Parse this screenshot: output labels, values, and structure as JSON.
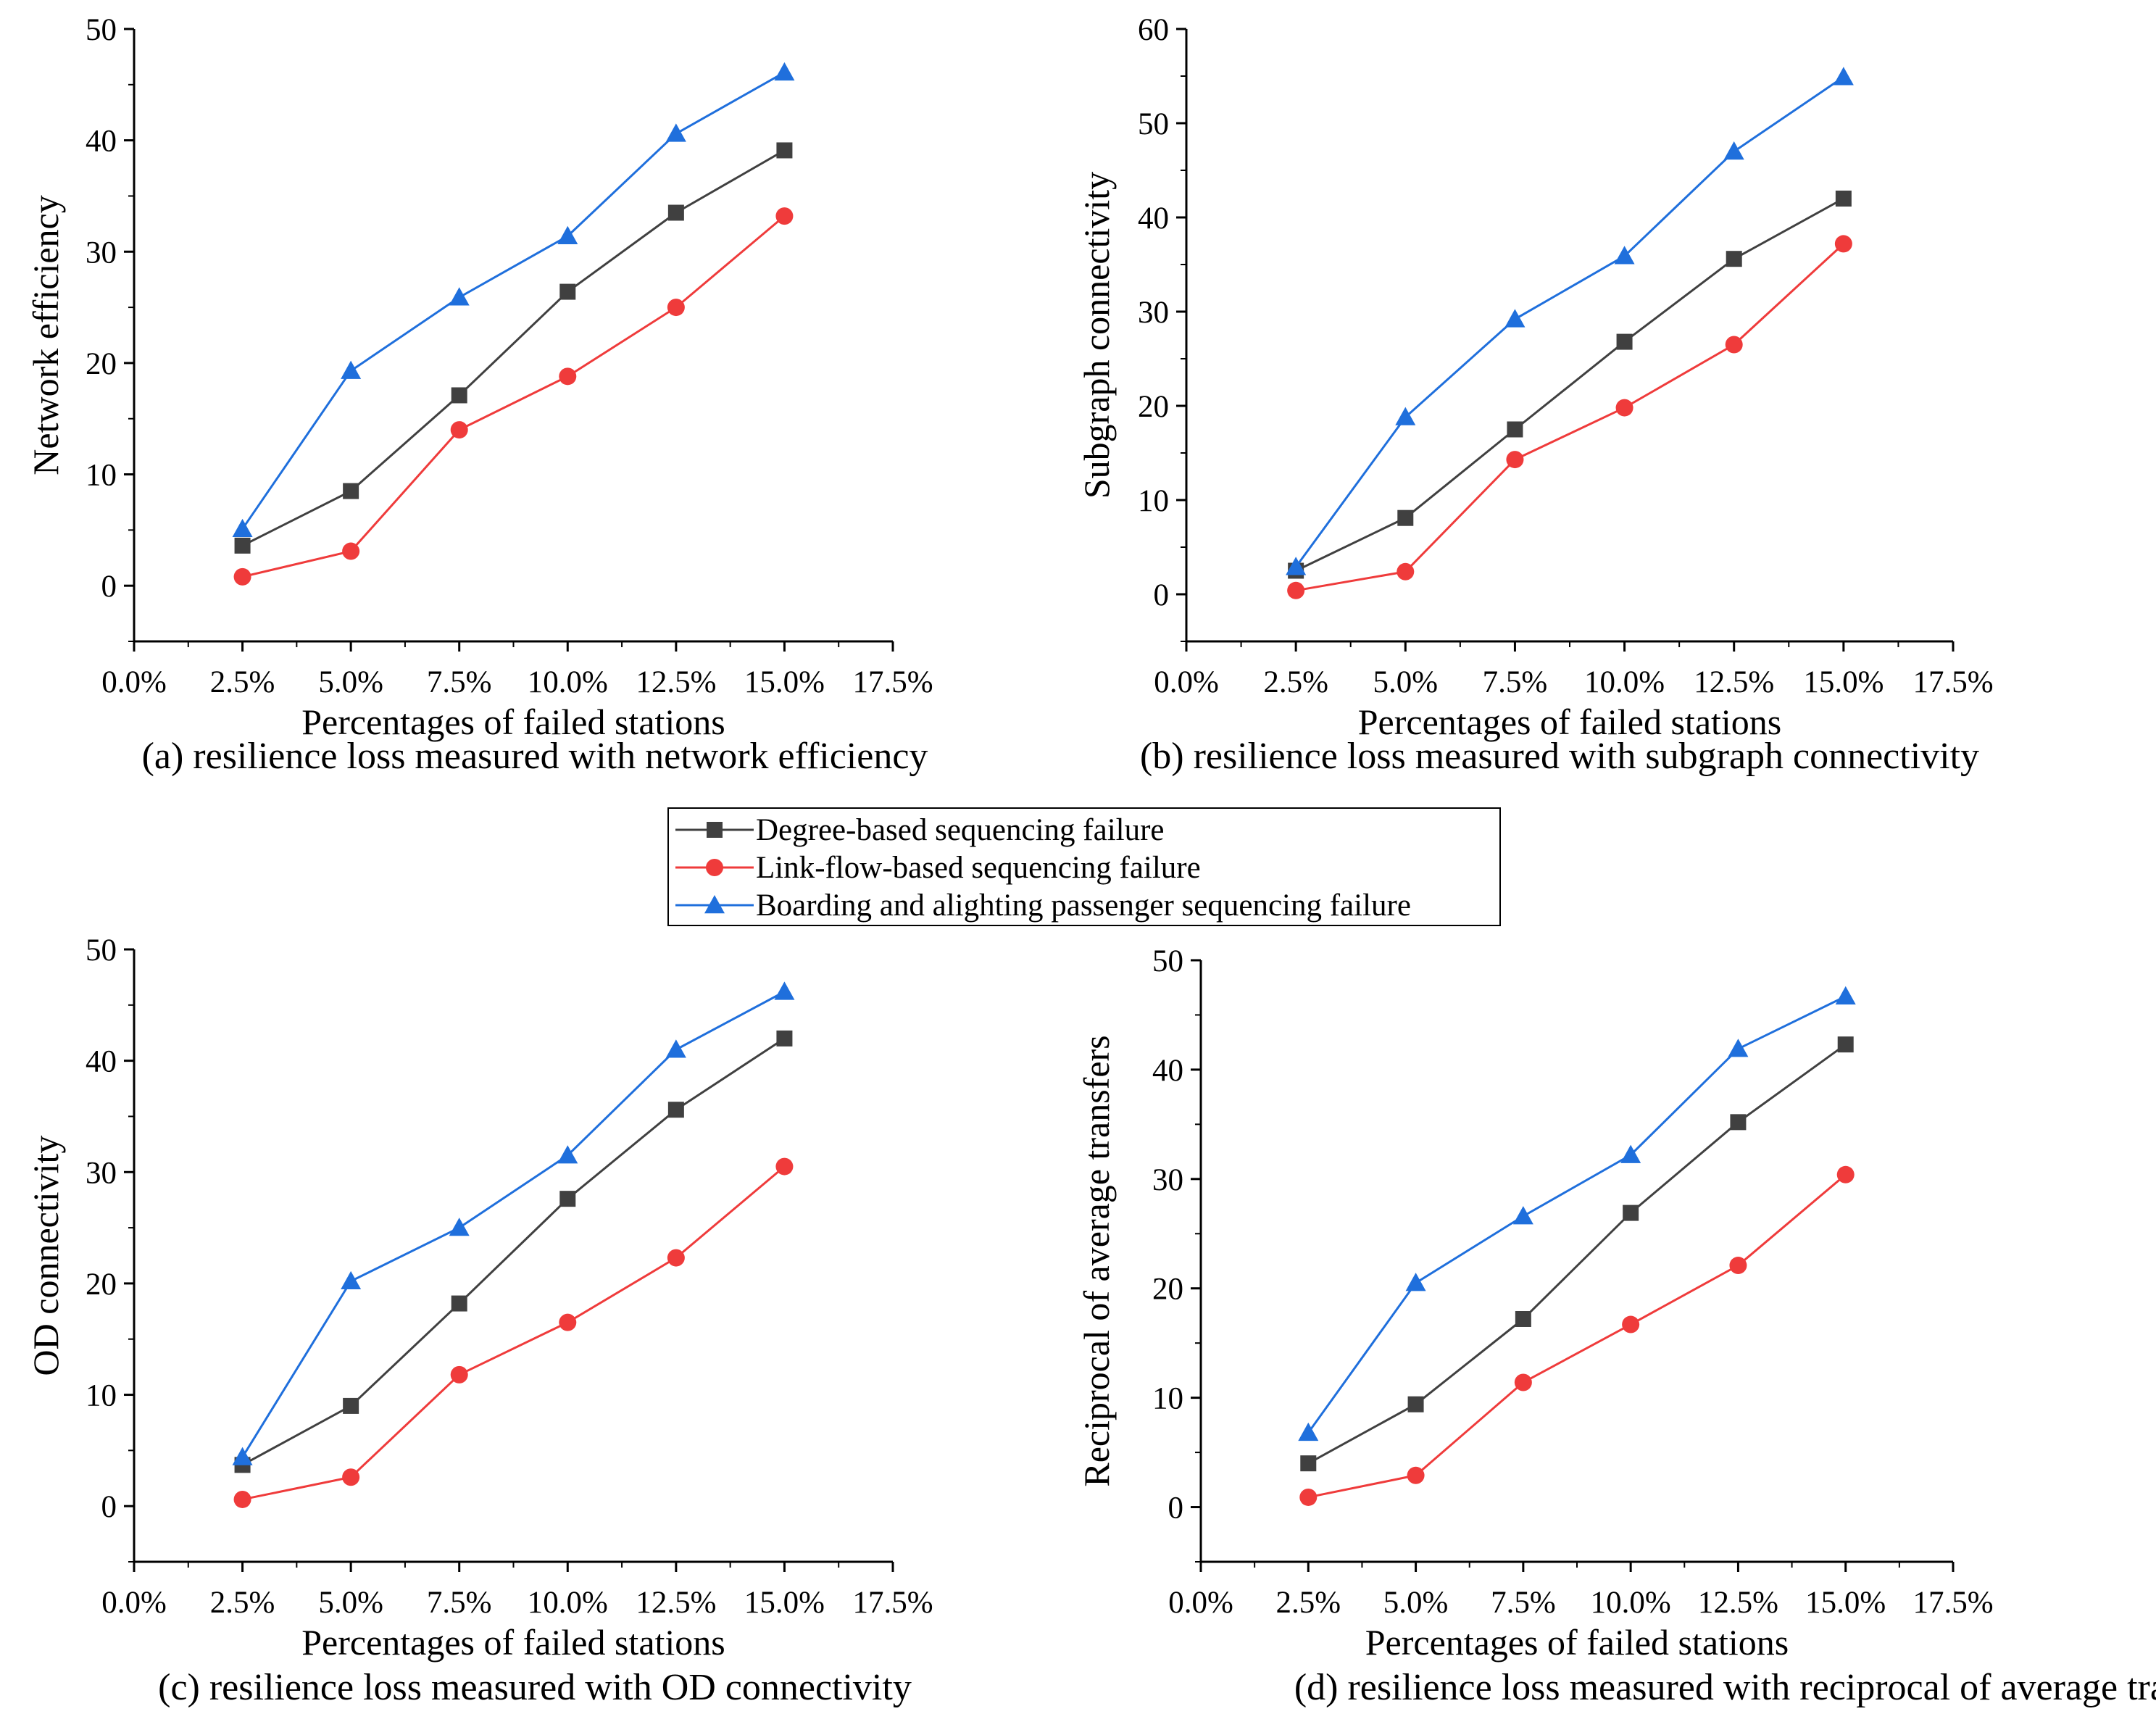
{
  "chart_data": [
    {
      "id": "a",
      "type": "line",
      "caption": "(a) resilience loss measured with network efficiency",
      "xlabel": "Percentages of failed stations",
      "ylabel": "Network efficiency",
      "x_ticks": [
        "0.0%",
        "2.5%",
        "5.0%",
        "7.5%",
        "10.0%",
        "12.5%",
        "15.0%",
        "17.5%"
      ],
      "xlim": [
        0,
        17.5
      ],
      "y_ticks": [
        "0",
        "10",
        "20",
        "30",
        "40",
        "50"
      ],
      "ylim": [
        -5,
        50
      ],
      "x": [
        2.5,
        5.0,
        7.5,
        10.0,
        12.5,
        15.0
      ],
      "series": [
        {
          "name": "Degree-based sequencing failure",
          "values": [
            3.6,
            8.5,
            17.1,
            26.4,
            33.5,
            39.1
          ]
        },
        {
          "name": "Link-flow-based sequencing failure",
          "values": [
            0.8,
            3.1,
            14.0,
            18.8,
            25.0,
            33.2
          ]
        },
        {
          "name": "Boarding and alighting passenger sequencing failure",
          "values": [
            5.1,
            19.3,
            25.9,
            31.4,
            40.6,
            46.1
          ]
        }
      ]
    },
    {
      "id": "b",
      "type": "line",
      "caption": "(b) resilience loss measured with subgraph connectivity",
      "xlabel": "Percentages of failed stations",
      "ylabel": "Subgraph connectivity",
      "x_ticks": [
        "0.0%",
        "2.5%",
        "5.0%",
        "7.5%",
        "10.0%",
        "12.5%",
        "15.0%",
        "17.5%"
      ],
      "xlim": [
        0,
        17.5
      ],
      "y_ticks": [
        "0",
        "10",
        "20",
        "30",
        "40",
        "50",
        "60"
      ],
      "ylim": [
        -5,
        60
      ],
      "x": [
        2.5,
        5.0,
        7.5,
        10.0,
        12.5,
        15.0
      ],
      "series": [
        {
          "name": "Degree-based sequencing failure",
          "values": [
            2.5,
            8.1,
            17.5,
            26.8,
            35.6,
            42.0
          ]
        },
        {
          "name": "Link-flow-based sequencing failure",
          "values": [
            0.4,
            2.4,
            14.3,
            19.8,
            26.5,
            37.2
          ]
        },
        {
          "name": "Boarding and alighting passenger sequencing failure",
          "values": [
            2.9,
            18.8,
            29.2,
            35.9,
            47.0,
            54.9
          ]
        }
      ]
    },
    {
      "id": "c",
      "type": "line",
      "caption": "(c) resilience loss measured with OD connectivity",
      "xlabel": "Percentages of failed stations",
      "ylabel": "OD connectivity",
      "x_ticks": [
        "0.0%",
        "2.5%",
        "5.0%",
        "7.5%",
        "10.0%",
        "12.5%",
        "15.0%",
        "17.5%"
      ],
      "xlim": [
        0,
        17.5
      ],
      "y_ticks": [
        "0",
        "10",
        "20",
        "30",
        "40",
        "50"
      ],
      "ylim": [
        -5,
        50
      ],
      "x": [
        2.5,
        5.0,
        7.5,
        10.0,
        12.5,
        15.0
      ],
      "series": [
        {
          "name": "Degree-based sequencing failure",
          "values": [
            3.7,
            9.0,
            18.2,
            27.6,
            35.6,
            42.0
          ]
        },
        {
          "name": "Link-flow-based sequencing failure",
          "values": [
            0.6,
            2.6,
            11.8,
            16.5,
            22.3,
            30.5
          ]
        },
        {
          "name": "Boarding and alighting passenger sequencing failure",
          "values": [
            4.4,
            20.2,
            25.0,
            31.5,
            41.0,
            46.2
          ]
        }
      ]
    },
    {
      "id": "d",
      "type": "line",
      "caption": "(d) resilience loss measured with reciprocal of average transfers",
      "xlabel": "Percentages of failed stations",
      "ylabel": "Reciprocal of average transfers",
      "x_ticks": [
        "0.0%",
        "2.5%",
        "5.0%",
        "7.5%",
        "10.0%",
        "12.5%",
        "15.0%",
        "17.5%"
      ],
      "xlim": [
        0,
        17.5
      ],
      "y_ticks": [
        "0",
        "10",
        "20",
        "30",
        "40",
        "50"
      ],
      "ylim": [
        -5,
        50
      ],
      "x": [
        2.5,
        5.0,
        7.5,
        10.0,
        12.5,
        15.0
      ],
      "series": [
        {
          "name": "Degree-based sequencing failure",
          "values": [
            4.0,
            9.4,
            17.2,
            26.9,
            35.2,
            42.3
          ]
        },
        {
          "name": "Link-flow-based sequencing failure",
          "values": [
            0.9,
            2.9,
            11.4,
            16.7,
            22.1,
            30.4
          ]
        },
        {
          "name": "Boarding and alighting passenger sequencing failure",
          "values": [
            6.8,
            20.5,
            26.6,
            32.2,
            41.9,
            46.7
          ]
        }
      ]
    }
  ],
  "legend": {
    "entries": [
      {
        "label": "Degree-based sequencing failure",
        "marker": "square",
        "color": "#404040"
      },
      {
        "label": "Link-flow-based sequencing failure",
        "marker": "circle",
        "color": "#ef3b3b"
      },
      {
        "label": "Boarding and alighting passenger sequencing failure",
        "marker": "triangle",
        "color": "#1f6fdc"
      }
    ]
  },
  "series_style": [
    {
      "marker": "square",
      "line_color": "#404040",
      "marker_color": "#404040"
    },
    {
      "marker": "circle",
      "line_color": "#ef3b3b",
      "marker_color": "#ef3b3b"
    },
    {
      "marker": "triangle",
      "line_color": "#1f6fdc",
      "marker_color": "#1f6fdc"
    }
  ]
}
